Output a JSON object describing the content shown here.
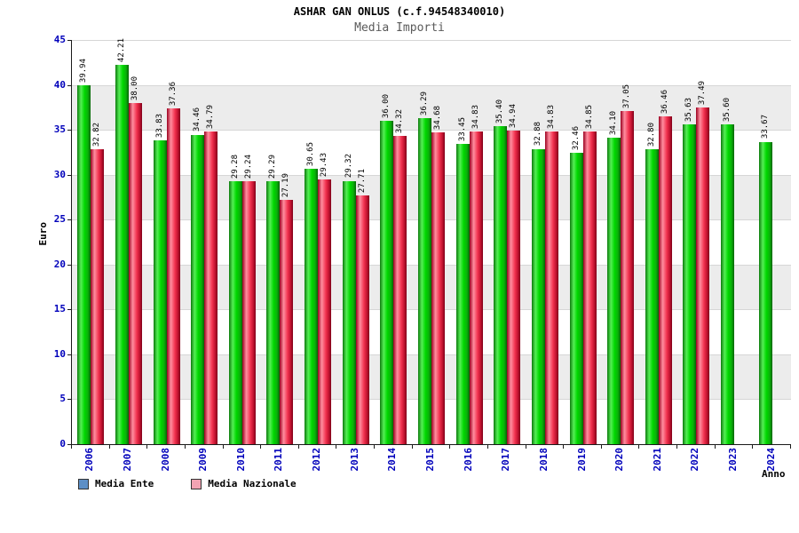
{
  "header": {
    "title": "ASHAR GAN ONLUS (c.f.94548340010)",
    "subtitle": "Media Importi"
  },
  "chart_data": {
    "type": "bar",
    "title": "ASHAR GAN ONLUS (c.f.94548340010)",
    "subtitle": "Media Importi",
    "xlabel": "Anno",
    "ylabel": "Euro",
    "ylim": [
      0,
      45
    ],
    "yticks": [
      0,
      5,
      10,
      15,
      20,
      25,
      30,
      35,
      40,
      45
    ],
    "grid": true,
    "legend_position": "bottom-left",
    "value_label_decimals": 2,
    "categories": [
      "2006",
      "2007",
      "2008",
      "2009",
      "2010",
      "2011",
      "2012",
      "2013",
      "2014",
      "2015",
      "2016",
      "2017",
      "2018",
      "2019",
      "2020",
      "2021",
      "2022",
      "2023",
      "2024"
    ],
    "series": [
      {
        "name": "Media Ente",
        "bar_color": "#00cc00",
        "values": [
          39.94,
          42.21,
          33.83,
          34.46,
          29.28,
          29.29,
          30.65,
          29.32,
          36.0,
          36.29,
          33.45,
          35.4,
          32.88,
          32.46,
          34.1,
          32.8,
          35.63,
          35.6,
          33.67
        ]
      },
      {
        "name": "Media Nazionale",
        "bar_color": "#ee3350",
        "values": [
          32.82,
          38.0,
          37.36,
          34.79,
          29.24,
          27.19,
          29.43,
          27.71,
          34.32,
          34.68,
          34.83,
          34.94,
          34.83,
          34.85,
          37.05,
          36.46,
          37.49,
          null,
          null
        ]
      }
    ]
  },
  "legend": {
    "items": [
      {
        "label": "Media Ente",
        "swatch_color": "#5d8fc6"
      },
      {
        "label": "Media Nazionale",
        "swatch_color": "#f2a3b3"
      }
    ]
  },
  "colors": {
    "axis_tick_label": "#0000bb",
    "subtitle_text": "#5a5a5a",
    "band_gray": "#ececec"
  }
}
